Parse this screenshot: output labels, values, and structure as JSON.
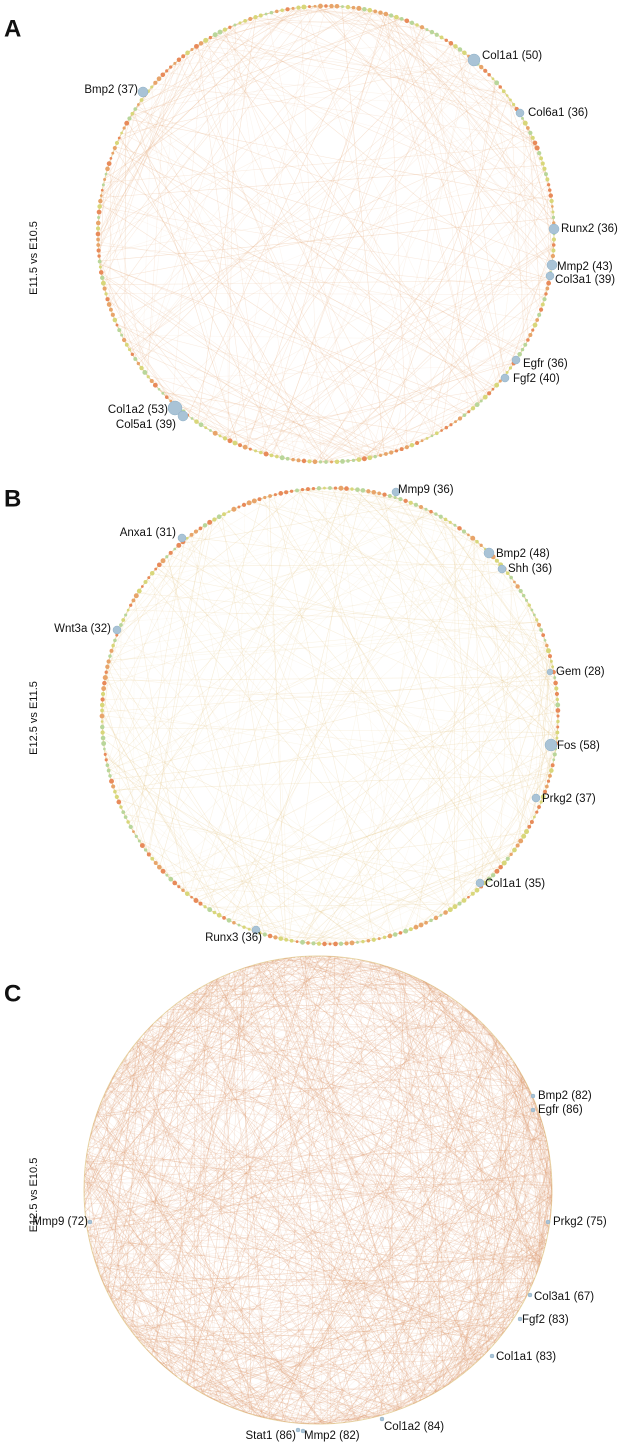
{
  "panels": [
    {
      "letter": "A",
      "comparison": "E11.5 vs E10.5",
      "nodes": [
        "Col1a1 (50)",
        "Bmp2 (37)",
        "Col6a1 (36)",
        "Runx2 (36)",
        "Mmp2 (43)",
        "Col3a1 (39)",
        "Egfr (36)",
        "Fgf2 (40)",
        "Col1a2 (53)",
        "Col5a1 (39)"
      ]
    },
    {
      "letter": "B",
      "comparison": "E12.5 vs E11.5",
      "nodes": [
        "Mmp9 (36)",
        "Anxa1 (31)",
        "Bmp2 (48)",
        "Shh (36)",
        "Wnt3a (32)",
        "Gem (28)",
        "Fos (58)",
        "Prkg2 (37)",
        "Col1a1 (35)",
        "Runx3 (36)"
      ]
    },
    {
      "letter": "C",
      "comparison": "E12.5 vs E10.5",
      "nodes": [
        "Bmp2 (82)",
        "Egfr (86)",
        "Prkg2 (75)",
        "Mmp9 (72)",
        "Col3a1 (67)",
        "Fgf2 (83)",
        "Col1a1 (83)",
        "Stat1 (86)",
        "Mmp2 (82)",
        "Col1a2 (84)"
      ]
    }
  ]
}
